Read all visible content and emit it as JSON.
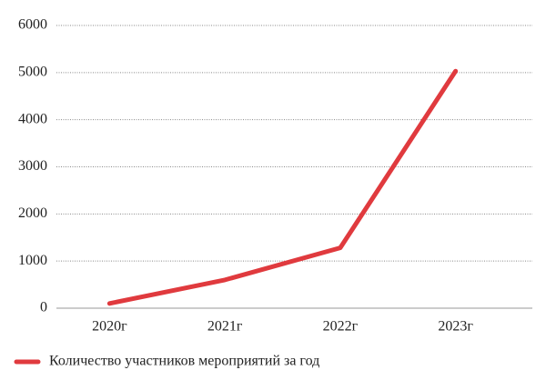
{
  "chart_data": {
    "type": "line",
    "categories": [
      "2020г",
      "2021г",
      "2022г",
      "2023г"
    ],
    "series": [
      {
        "name": "Количество участников мероприятий за год",
        "color": "#e03a3e",
        "values": [
          100,
          600,
          1280,
          5030
        ]
      }
    ],
    "ylim": [
      0,
      6000
    ],
    "yticks": [
      0,
      1000,
      2000,
      3000,
      4000,
      5000,
      6000
    ],
    "grid": true,
    "legend": "bottom-left"
  }
}
